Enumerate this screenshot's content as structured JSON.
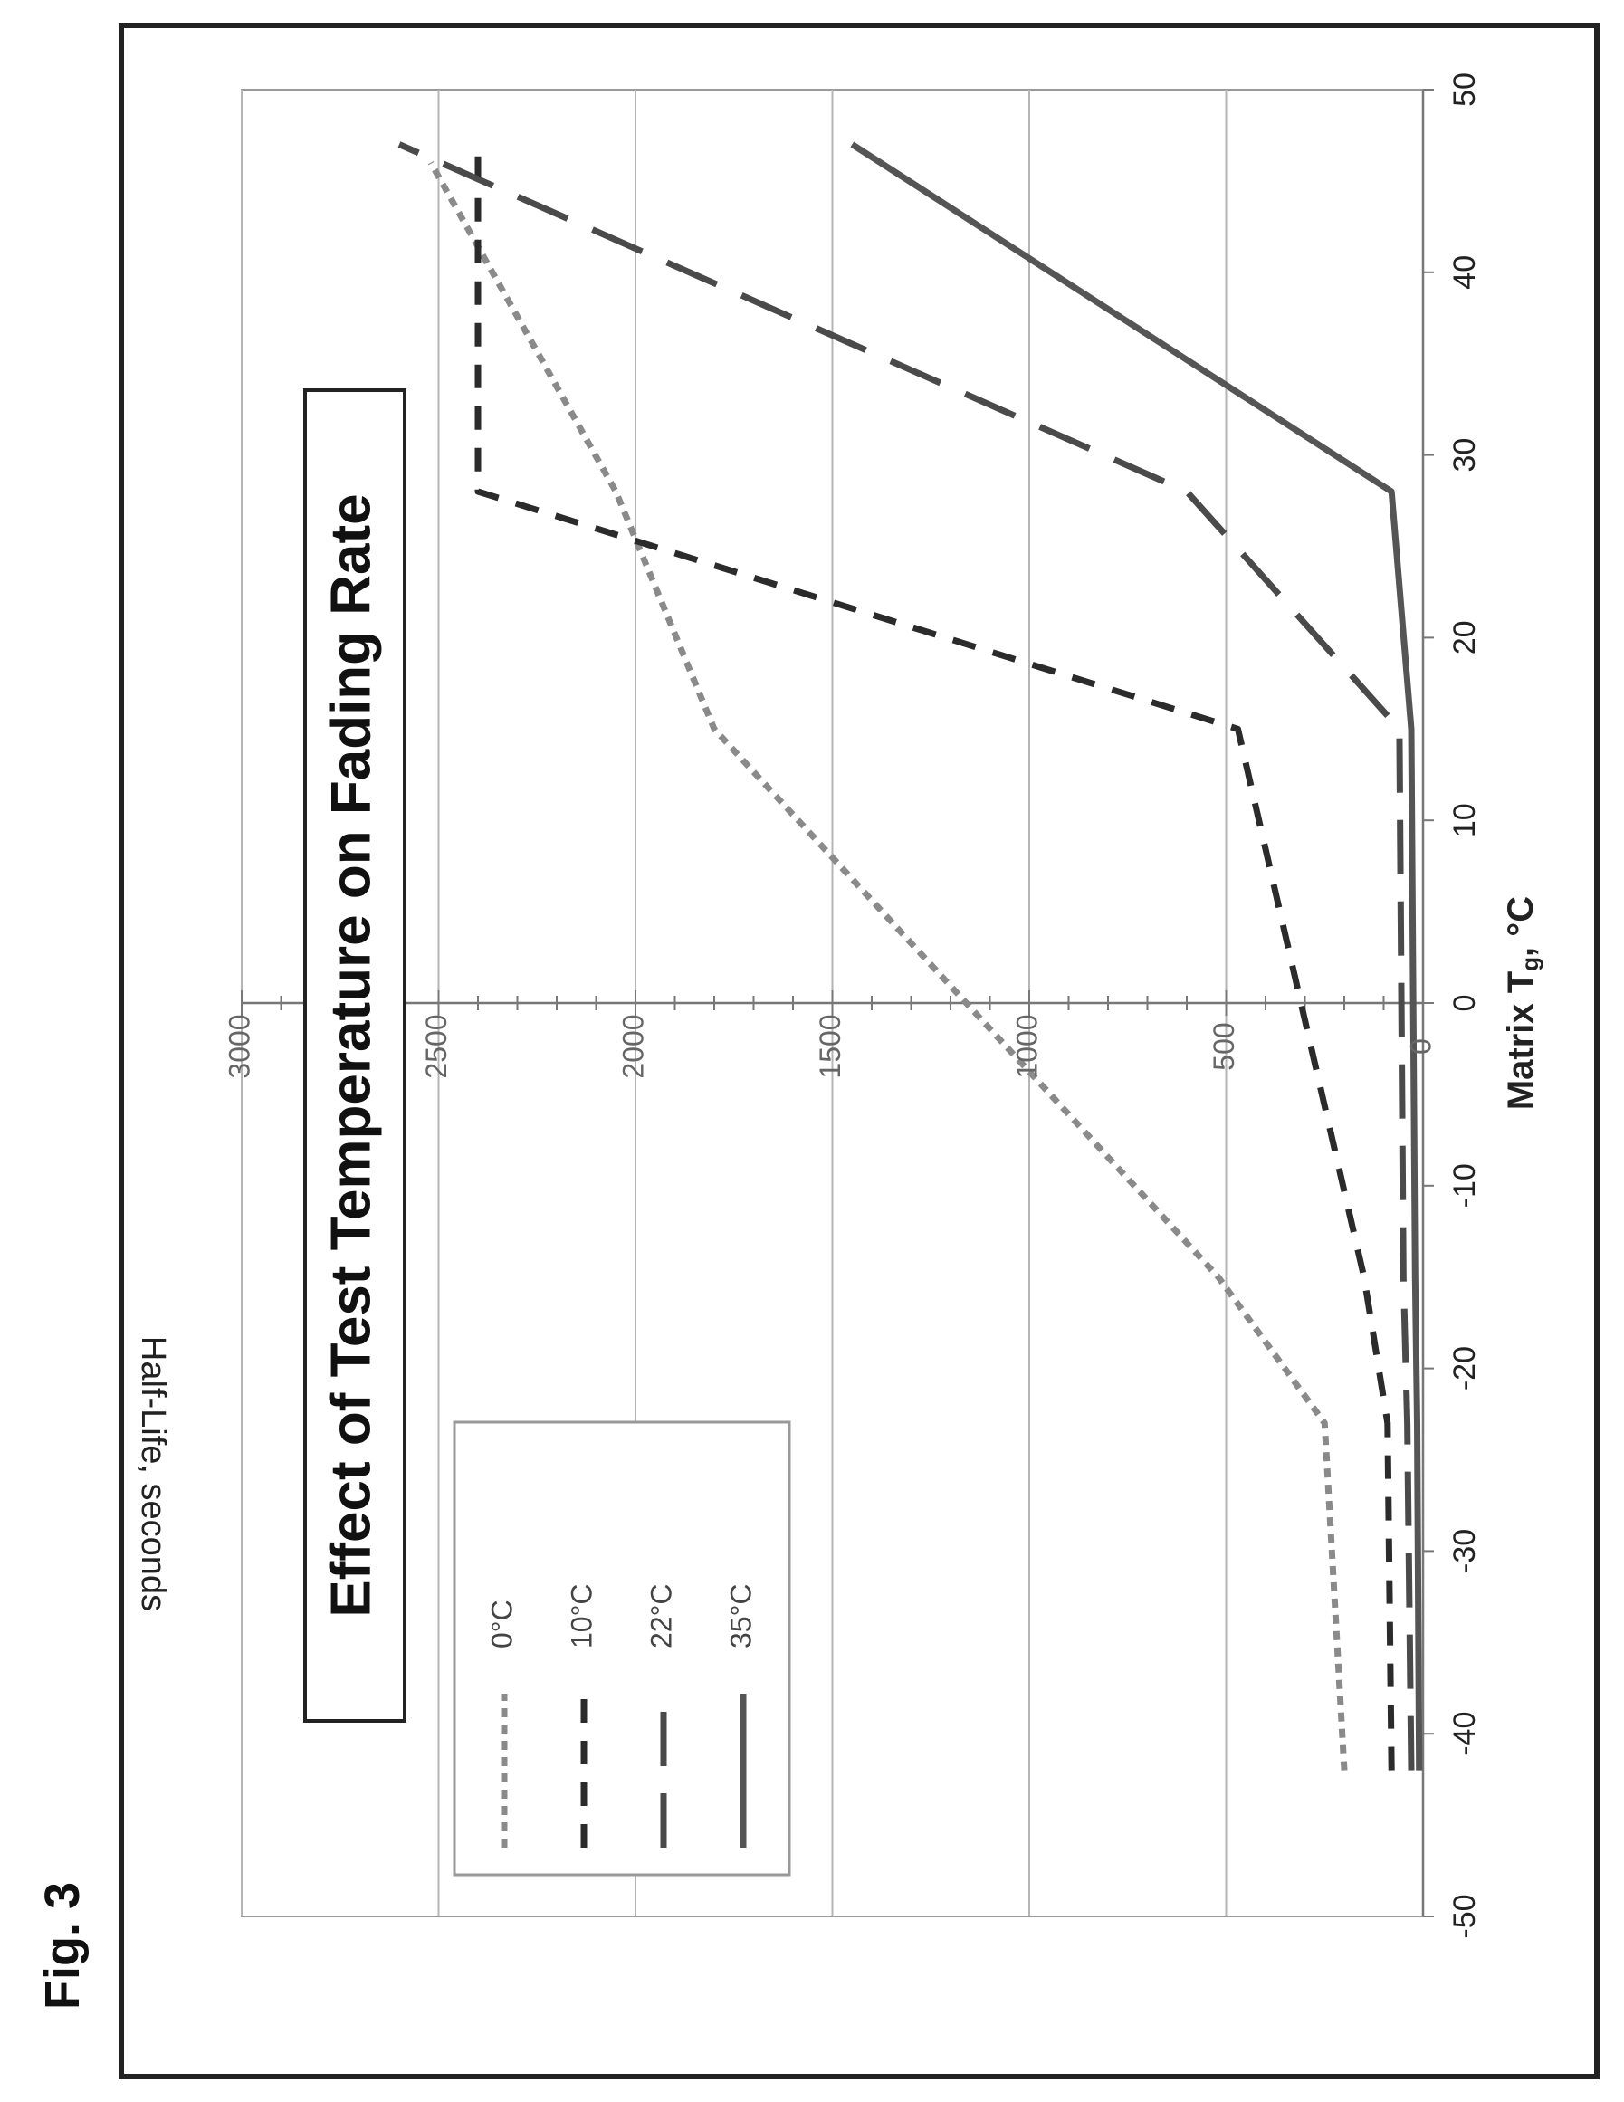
{
  "figure_label": "Fig. 3",
  "chart_data": {
    "type": "line",
    "title": "Effect of Test Temperature on Fading Rate",
    "xlabel": "Matrix T",
    "xlabel_sub": "g",
    "xlabel_unit": ", °C",
    "ylabel": "Half-Life, seconds",
    "xlim": [
      -50,
      50
    ],
    "ylim": [
      0,
      3000
    ],
    "x_ticks": [
      -50,
      -40,
      -30,
      -20,
      -10,
      0,
      10,
      20,
      30,
      40,
      50
    ],
    "y_ticks": [
      0,
      500,
      1000,
      1500,
      2000,
      2500,
      3000
    ],
    "x_tick_labels": [
      "-50",
      "-40",
      "-30",
      "-20",
      "-10",
      "0",
      "10",
      "20",
      "30",
      "40",
      "50"
    ],
    "y_tick_labels": [
      "0",
      "500",
      "1000",
      "1500",
      "2000",
      "2500",
      "3000"
    ],
    "grid": "horizontal",
    "legend_position": "left",
    "series": [
      {
        "name": "0°C",
        "color": "#8a8a8a",
        "style": "short-dash",
        "x": [
          -42,
          -23,
          -15,
          15,
          28,
          46
        ],
        "y": [
          200,
          250,
          520,
          1800,
          2050,
          2520
        ]
      },
      {
        "name": "10°C",
        "color": "#2b2b2b",
        "style": "dash",
        "x": [
          -42,
          -23,
          -15,
          15,
          28,
          47
        ],
        "y": [
          80,
          90,
          150,
          470,
          2400,
          2400
        ]
      },
      {
        "name": "22°C",
        "color": "#4a4a4a",
        "style": "long-dash",
        "x": [
          -42,
          -23,
          -15,
          15,
          28,
          47
        ],
        "y": [
          30,
          40,
          50,
          60,
          600,
          2600
        ]
      },
      {
        "name": "35°C",
        "color": "#555555",
        "style": "solid",
        "x": [
          -42,
          -23,
          -15,
          15,
          28,
          47
        ],
        "y": [
          10,
          15,
          20,
          30,
          80,
          1450
        ]
      }
    ]
  }
}
